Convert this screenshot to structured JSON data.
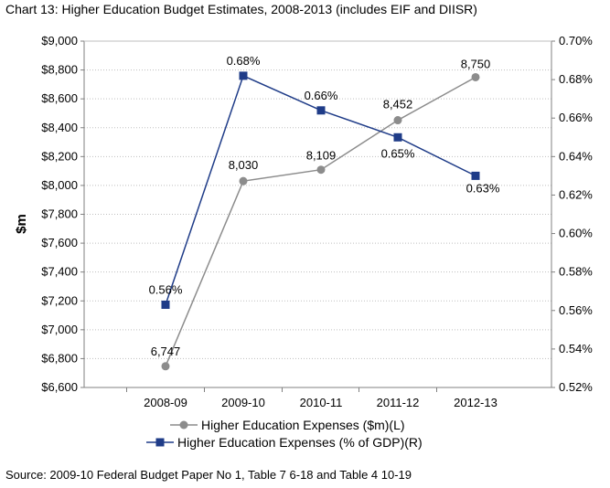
{
  "title": "Chart 13: Higher Education Budget Estimates, 2008-2013 (includes EIF and DIISR)",
  "source": "Source: 2009-10 Federal Budget Paper No 1, Table 7 6-18 and Table 4 10-19",
  "colors": {
    "series_left": "#8c8c8c",
    "series_right": "#1f3c88",
    "grid": "#bfbfbf",
    "axis": "#808080"
  },
  "chart_data": {
    "type": "line",
    "categories": [
      "2008-09",
      "2009-10",
      "2010-11",
      "2011-12",
      "2012-13"
    ],
    "ylabel": "$m",
    "ylim": [
      6600,
      9000
    ],
    "y2lim": [
      0.52,
      0.7
    ],
    "yticks": [
      "$6,600",
      "$6,800",
      "$7,000",
      "$7,200",
      "$7,400",
      "$7,600",
      "$7,800",
      "$8,000",
      "$8,200",
      "$8,400",
      "$8,600",
      "$8,800",
      "$9,000"
    ],
    "y2ticks": [
      "0.52%",
      "0.54%",
      "0.56%",
      "0.58%",
      "0.60%",
      "0.62%",
      "0.64%",
      "0.66%",
      "0.68%",
      "0.70%"
    ],
    "grid": true,
    "legend_position": "bottom",
    "series": [
      {
        "name": "Higher Education Expenses ($m)(L)",
        "axis": "left",
        "marker": "circle",
        "values": [
          6747,
          8030,
          8109,
          8452,
          8750
        ],
        "labels": [
          "6,747",
          "8,030",
          "8,109",
          "8,452",
          "8,750"
        ]
      },
      {
        "name": "Higher Education Expenses (% of GDP)(R)",
        "axis": "right",
        "marker": "square",
        "values": [
          0.563,
          0.682,
          0.664,
          0.65,
          0.63
        ],
        "labels": [
          "0.56%",
          "0.68%",
          "0.66%",
          "0.65%",
          "0.63%"
        ]
      }
    ]
  }
}
